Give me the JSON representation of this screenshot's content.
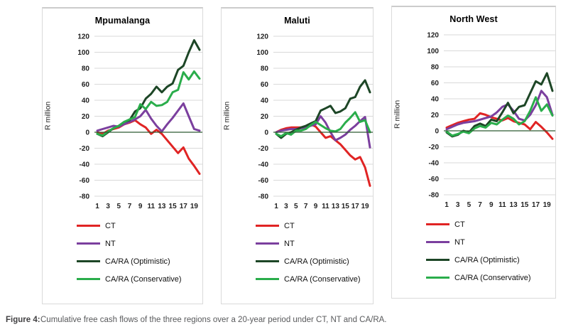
{
  "caption": {
    "label": "Figure 4:",
    "text": "Cumulative free cash flows of the three regions over a 20-year period under CT, NT and CA/RA."
  },
  "axis": {
    "y_title": "R million",
    "y_ticks": [
      120,
      100,
      80,
      60,
      40,
      20,
      0,
      -20,
      -40,
      -60,
      -80
    ],
    "x_ticks": [
      1,
      3,
      5,
      7,
      9,
      11,
      13,
      15,
      17,
      19
    ],
    "ylim": [
      -80,
      120
    ],
    "gridline_color": "#d9d9d9",
    "zero_line_color": "#2f5b33"
  },
  "legend": [
    {
      "name": "CT",
      "color": "#e02424"
    },
    {
      "name": "NT",
      "color": "#7b3f9e"
    },
    {
      "name": "CA/RA (Optimistic)",
      "color": "#1d4626"
    },
    {
      "name": "CA/RA (Conservative)",
      "color": "#2aad4b"
    }
  ],
  "chart_data": [
    {
      "type": "line",
      "title": "Mpumalanga",
      "xlabel": "",
      "ylabel": "R million",
      "x": [
        1,
        2,
        3,
        4,
        5,
        6,
        7,
        8,
        9,
        10,
        11,
        12,
        13,
        14,
        15,
        16,
        17,
        18,
        19,
        20
      ],
      "ylim": [
        -80,
        120
      ],
      "grid": true,
      "legend_position": "bottom-left",
      "series": [
        {
          "name": "CT",
          "color": "#e02424",
          "values": [
            0,
            -2,
            2,
            4,
            6,
            10,
            12,
            15,
            10,
            6,
            -2,
            3,
            -2,
            -10,
            -18,
            -26,
            -19,
            -33,
            -42,
            -52
          ]
        },
        {
          "name": "NT",
          "color": "#7b3f9e",
          "values": [
            2,
            4,
            6,
            8,
            7,
            10,
            13,
            16,
            20,
            28,
            17,
            8,
            1,
            10,
            18,
            27,
            36,
            20,
            4,
            2
          ]
        },
        {
          "name": "CA/RA (Optimistic)",
          "color": "#1d4626",
          "values": [
            -2,
            -5,
            0,
            5,
            8,
            13,
            15,
            26,
            30,
            42,
            48,
            57,
            50,
            57,
            61,
            78,
            83,
            100,
            115,
            103
          ]
        },
        {
          "name": "CA/RA (Conservative)",
          "color": "#2aad4b",
          "values": [
            -2,
            -4,
            1,
            5,
            8,
            13,
            16,
            19,
            35,
            29,
            38,
            33,
            34,
            38,
            50,
            53,
            75,
            66,
            76,
            67
          ]
        }
      ]
    },
    {
      "type": "line",
      "title": "Maluti",
      "xlabel": "",
      "ylabel": "R million",
      "x": [
        1,
        2,
        3,
        4,
        5,
        6,
        7,
        8,
        9,
        10,
        11,
        12,
        13,
        14,
        15,
        16,
        17,
        18,
        19,
        20
      ],
      "ylim": [
        -80,
        120
      ],
      "grid": true,
      "legend_position": "bottom-left",
      "series": [
        {
          "name": "CT",
          "color": "#e02424",
          "values": [
            0,
            3,
            5,
            6,
            6,
            6,
            7,
            10,
            7,
            0,
            -7,
            -5,
            -10,
            -15,
            -22,
            -29,
            -34,
            -31,
            -44,
            -67
          ]
        },
        {
          "name": "NT",
          "color": "#7b3f9e",
          "values": [
            0,
            2,
            3,
            4,
            4,
            5,
            6,
            8,
            10,
            20,
            12,
            0,
            -10,
            -7,
            -3,
            3,
            8,
            14,
            19,
            -19
          ]
        },
        {
          "name": "CA/RA (Optimistic)",
          "color": "#1d4626",
          "values": [
            -2,
            -7,
            -2,
            0,
            3,
            6,
            8,
            11,
            14,
            27,
            30,
            33,
            24,
            26,
            30,
            42,
            44,
            57,
            65,
            50
          ]
        },
        {
          "name": "CA/RA (Conservative)",
          "color": "#2aad4b",
          "values": [
            -2,
            -5,
            -1,
            -3,
            2,
            2,
            4,
            9,
            13,
            9,
            5,
            2,
            1,
            4,
            12,
            18,
            25,
            13,
            15,
            0
          ]
        }
      ]
    },
    {
      "type": "line",
      "title": "North West",
      "xlabel": "",
      "ylabel": "R million",
      "x": [
        1,
        2,
        3,
        4,
        5,
        6,
        7,
        8,
        9,
        10,
        11,
        12,
        13,
        14,
        15,
        16,
        17,
        18,
        19,
        20
      ],
      "ylim": [
        -80,
        120
      ],
      "grid": true,
      "legend_position": "bottom-left",
      "series": [
        {
          "name": "CT",
          "color": "#e02424",
          "values": [
            4,
            7,
            10,
            12,
            14,
            15,
            22,
            20,
            17,
            15,
            13,
            16,
            12,
            10,
            8,
            2,
            11,
            5,
            -2,
            -10
          ]
        },
        {
          "name": "NT",
          "color": "#7b3f9e",
          "values": [
            2,
            5,
            8,
            10,
            11,
            12,
            14,
            16,
            18,
            23,
            30,
            33,
            25,
            15,
            13,
            20,
            32,
            50,
            42,
            20
          ]
        },
        {
          "name": "CA/RA (Optimistic)",
          "color": "#1d4626",
          "values": [
            -2,
            -7,
            -5,
            0,
            -2,
            6,
            9,
            6,
            14,
            12,
            23,
            35,
            22,
            30,
            32,
            47,
            62,
            58,
            72,
            50
          ]
        },
        {
          "name": "CA/RA (Conservative)",
          "color": "#2aad4b",
          "values": [
            -1,
            -6,
            -4,
            -1,
            -3,
            3,
            6,
            4,
            10,
            8,
            14,
            19,
            15,
            8,
            12,
            25,
            42,
            25,
            33,
            19
          ]
        }
      ]
    }
  ]
}
